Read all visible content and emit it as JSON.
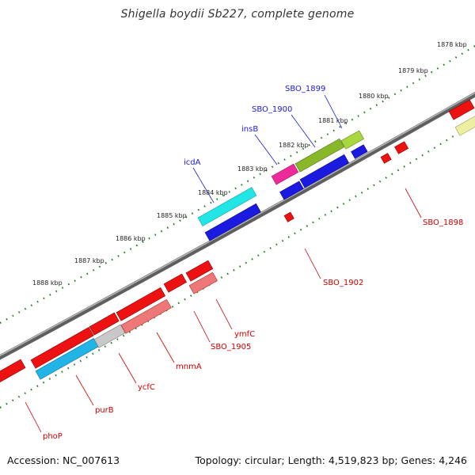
{
  "title": "Shigella boydii Sb227, complete genome",
  "footer": {
    "accession": "Accession: NC_007613",
    "summary": "Topology: circular; Length: 4,519,823 bp; Genes: 4,246"
  },
  "ruler_labels": [
    "1878 kbp",
    "1879 kbp",
    "1880 kbp",
    "1881 kbp",
    "1882 kbp",
    "1883 kbp",
    "1884 kbp",
    "1885 kbp",
    "1886 kbp",
    "1887 kbp",
    "1888 kbp"
  ],
  "gene_labels_top": [
    "SBO_1899",
    "SBO_1900",
    "insB",
    "icdA"
  ],
  "gene_labels_bottom": [
    "SBO_1898",
    "SBO_1902",
    "ymfC",
    "SBO_1905",
    "mnmA",
    "ycfC",
    "purB",
    "phoP"
  ],
  "colors": {
    "backbone": "#7a7a7a",
    "ruler": "#1a7a1a",
    "red": "#ee1111",
    "pink": "#ee7777",
    "blue": "#1a1ae0",
    "cyan": "#22e6e6",
    "lightblue": "#22b4e6",
    "green": "#88b82a",
    "magenta": "#ee2a9a",
    "yellow": "#eeeea0",
    "grey": "#c8c8c8",
    "label_blue": "#1a1ad6",
    "label_red": "#cc0000"
  }
}
